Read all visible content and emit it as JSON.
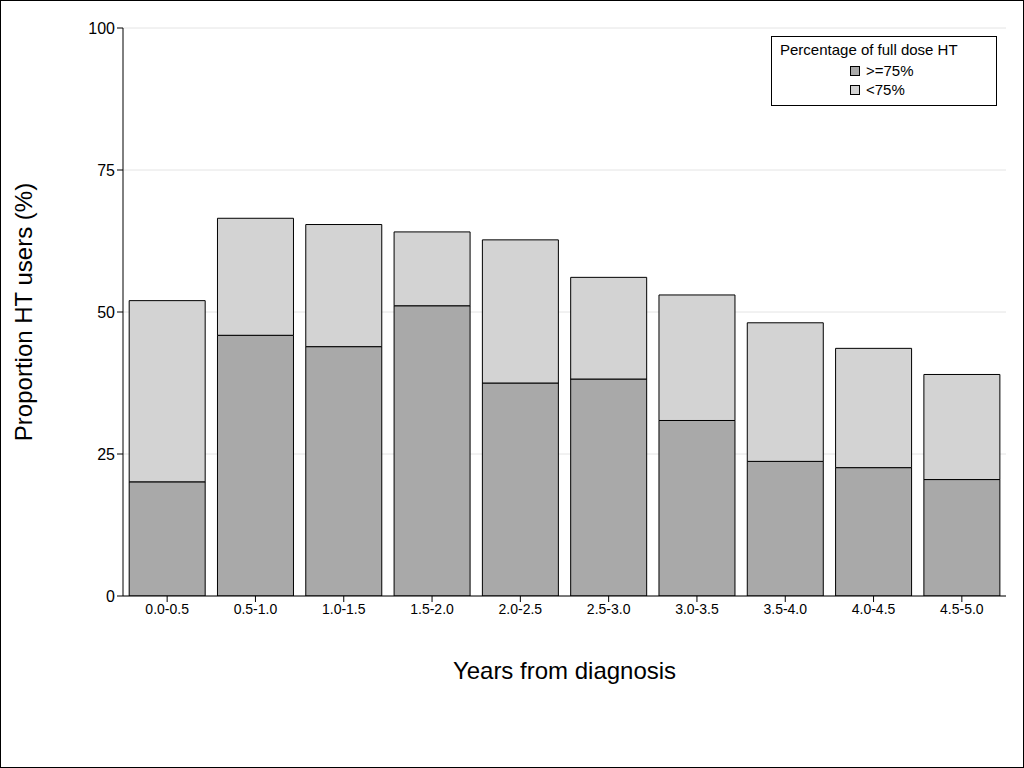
{
  "chart_data": {
    "type": "bar",
    "stacked": true,
    "x_label": "Years from diagnosis",
    "y_label": "Proportion HT users (%)",
    "legend_title": "Percentage of full dose HT",
    "legend": "top-right",
    "grid": true,
    "categories": [
      "0.0-0.5",
      "0.5-1.0",
      "1.0-1.5",
      "1.5-2.0",
      "2.0-2.5",
      "2.5-3.0",
      "3.0-3.5",
      "3.5-4.0",
      "4.0-4.5",
      "4.5-5.0"
    ],
    "series": [
      {
        "name": ">=75%",
        "color": "#a9a9a9",
        "values": [
          20.1,
          45.9,
          43.9,
          51.1,
          37.5,
          38.2,
          30.9,
          23.7,
          22.6,
          20.5
        ]
      },
      {
        "name": "<75%",
        "color": "#d3d3d3",
        "values": [
          31.9,
          20.6,
          21.5,
          13.0,
          25.2,
          17.9,
          22.1,
          24.4,
          21.0,
          18.5
        ]
      }
    ],
    "ylim": [
      0,
      100
    ],
    "yticks": [
      0,
      25,
      50,
      75,
      100
    ]
  }
}
